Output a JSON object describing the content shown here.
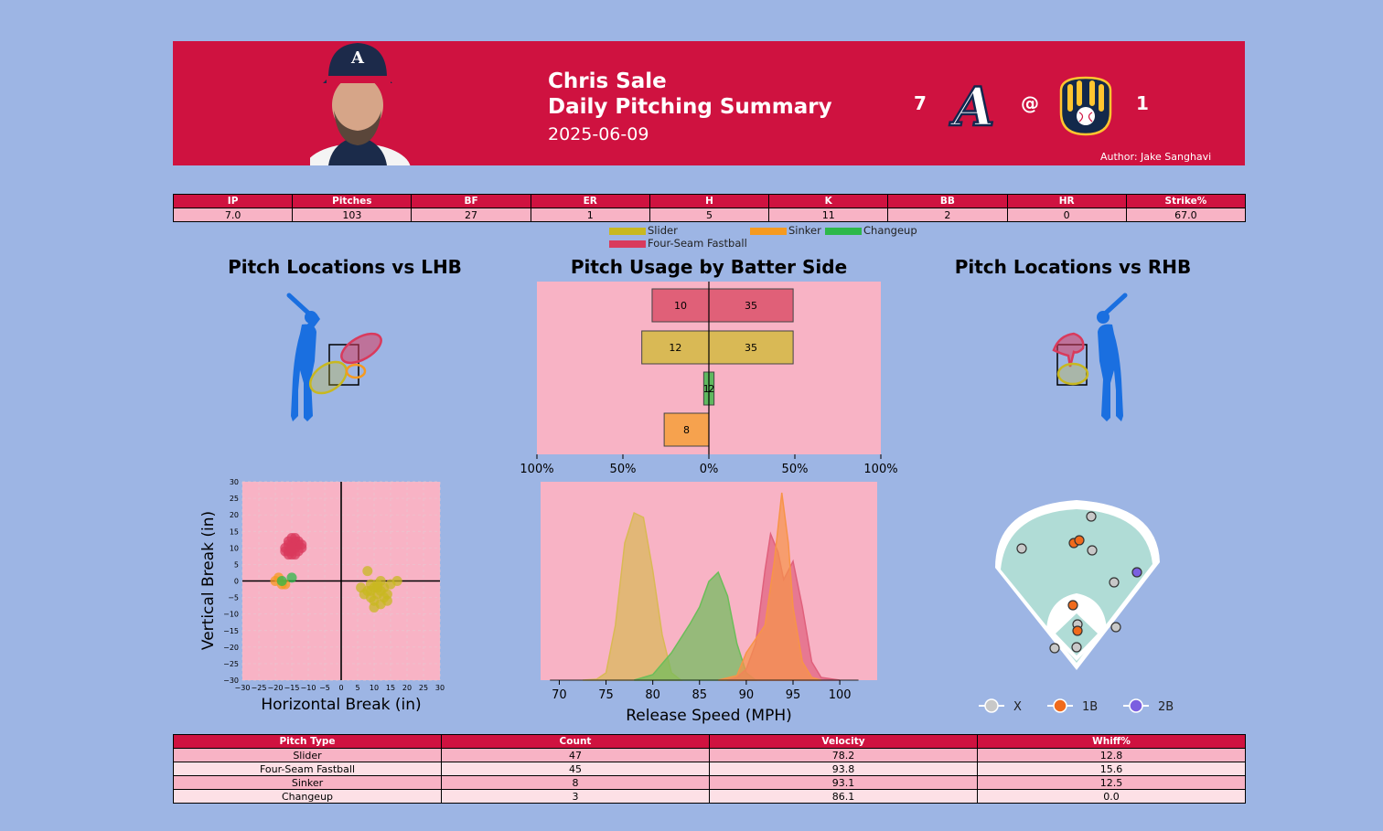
{
  "header": {
    "name": "Chris Sale",
    "subtitle": "Daily Pitching Summary",
    "date": "2025-06-09",
    "away_score": "7",
    "at": "@",
    "home_score": "1",
    "author": "Author: Jake Sanghavi"
  },
  "stats": {
    "columns": [
      "IP",
      "Pitches",
      "BF",
      "ER",
      "H",
      "K",
      "BB",
      "HR",
      "Strike%"
    ],
    "values": [
      "7.0",
      "103",
      "27",
      "1",
      "5",
      "11",
      "2",
      "0",
      "67.0"
    ]
  },
  "legend": [
    {
      "label": "Slider",
      "color": "#c8b820"
    },
    {
      "label": "Sinker",
      "color": "#f59a20"
    },
    {
      "label": "Changeup",
      "color": "#2db84a"
    },
    {
      "label": "Four-Seam Fastball",
      "color": "#d93a5c"
    }
  ],
  "titles": {
    "lhb": "Pitch Locations vs LHB",
    "usage": "Pitch Usage by Batter Side",
    "rhb": "Pitch Locations vs RHB"
  },
  "chart_data": [
    {
      "type": "bar",
      "title": "Pitch Usage by Batter Side",
      "categories": [
        "Four-Seam Fastball",
        "Slider",
        "Changeup",
        "Sinker"
      ],
      "series": [
        {
          "name": "LHB",
          "values": [
            10,
            12,
            1,
            8
          ],
          "percent": [
            33,
            39,
            3,
            26
          ]
        },
        {
          "name": "RHB",
          "values": [
            35,
            35,
            2,
            0
          ],
          "percent": [
            49,
            49,
            3,
            0
          ]
        }
      ],
      "colors": [
        "#e06078",
        "#d9b955",
        "#5fb85f",
        "#f6a24e"
      ],
      "xticks": [
        "100%",
        "50%",
        "0%",
        "50%",
        "100%"
      ],
      "xlim": [
        -100,
        100
      ]
    },
    {
      "type": "scatter",
      "xlabel": "Horizontal Break (in)",
      "ylabel": "Vertical Break (in)",
      "xlim": [
        -30,
        30
      ],
      "ylim": [
        -30,
        30
      ],
      "xticks": [
        -30,
        -25,
        -20,
        -15,
        -10,
        -5,
        0,
        5,
        10,
        15,
        20,
        25,
        30
      ],
      "yticks": [
        30,
        25,
        20,
        15,
        10,
        5,
        0,
        -5,
        -10,
        -15,
        -20,
        -25,
        -30
      ],
      "grid": true,
      "series": [
        {
          "name": "Four-Seam Fastball",
          "color": "#d93a5c",
          "points": [
            [
              -15,
              11
            ],
            [
              -14,
              10
            ],
            [
              -16,
              9
            ],
            [
              -13,
              12
            ],
            [
              -15,
              13
            ],
            [
              -17,
              10
            ],
            [
              -14,
              8
            ],
            [
              -16,
              12
            ],
            [
              -12,
              10
            ],
            [
              -15,
              9
            ],
            [
              -13,
              9
            ],
            [
              -16,
              11
            ],
            [
              -14,
              12
            ],
            [
              -15,
              8
            ],
            [
              -17,
              9
            ],
            [
              -13,
              11
            ],
            [
              -14,
              13
            ],
            [
              -16,
              8
            ],
            [
              -15,
              10
            ],
            [
              -12,
              11
            ]
          ]
        },
        {
          "name": "Slider",
          "color": "#c8b820",
          "points": [
            [
              8,
              3
            ],
            [
              10,
              -2
            ],
            [
              12,
              -3
            ],
            [
              9,
              -5
            ],
            [
              11,
              -1
            ],
            [
              13,
              -2
            ],
            [
              7,
              -4
            ],
            [
              10,
              -6
            ],
            [
              14,
              -4
            ],
            [
              9,
              -1
            ],
            [
              12,
              -7
            ],
            [
              11,
              -4
            ],
            [
              15,
              -1
            ],
            [
              8,
              -3
            ],
            [
              10,
              -8
            ],
            [
              13,
              -5
            ],
            [
              17,
              0
            ],
            [
              6,
              -2
            ],
            [
              12,
              0
            ],
            [
              14,
              -6
            ],
            [
              9,
              -3
            ],
            [
              11,
              -2
            ]
          ]
        },
        {
          "name": "Sinker",
          "color": "#f59a20",
          "points": [
            [
              -19,
              1
            ],
            [
              -18,
              -1
            ],
            [
              -20,
              0
            ],
            [
              -17,
              -1
            ]
          ]
        },
        {
          "name": "Changeup",
          "color": "#2db84a",
          "points": [
            [
              -15,
              1
            ],
            [
              -18,
              0
            ]
          ]
        }
      ]
    },
    {
      "type": "area",
      "xlabel": "Release Speed (MPH)",
      "xlim": [
        68,
        104
      ],
      "xticks": [
        70,
        75,
        80,
        85,
        90,
        95,
        100
      ],
      "series": [
        {
          "name": "Slider",
          "color": "#d9b955",
          "peak": 78.2
        },
        {
          "name": "Changeup",
          "color": "#6cbd5a",
          "peak": 86.9
        },
        {
          "name": "Four-Seam Fastball",
          "color": "#e0607c",
          "peak": 92.6
        },
        {
          "name": "Sinker",
          "color": "#f79448",
          "peak": 93.8
        }
      ]
    },
    {
      "type": "scatter",
      "legend": [
        {
          "label": "X",
          "color": "#c8c8c8"
        },
        {
          "label": "1B",
          "color": "#f06a1c"
        },
        {
          "label": "2B",
          "color": "#7b5fe0"
        }
      ],
      "legend_position": "bottom"
    }
  ],
  "pitch_table": {
    "columns": [
      "Pitch Type",
      "Count",
      "Velocity",
      "Whiff%"
    ],
    "rows": [
      [
        "Slider",
        "47",
        "78.2",
        "12.8"
      ],
      [
        "Four-Seam Fastball",
        "45",
        "93.8",
        "15.6"
      ],
      [
        "Sinker",
        "8",
        "93.1",
        "12.5"
      ],
      [
        "Changeup",
        "3",
        "86.1",
        "0.0"
      ]
    ]
  }
}
